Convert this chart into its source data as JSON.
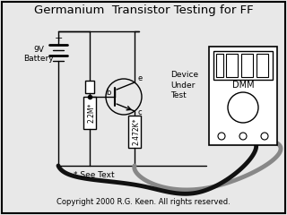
{
  "title": "Germanium  Transistor Testing for FF",
  "copyright": "Copyright 2000 R.G. Keen. All rights reserved.",
  "see_text": "* See Text",
  "battery_label_1": "9V",
  "battery_label_2": "Battery",
  "dmm_label": "DMM",
  "device_label": "Device\nUnder\nTest",
  "r1_label": "2.2M*",
  "r2_label": "2.472K*",
  "bg_color": "#e8e8e8",
  "line_color": "#000000",
  "title_fontsize": 9.5,
  "body_fontsize": 6.5,
  "small_fontsize": 5.5
}
